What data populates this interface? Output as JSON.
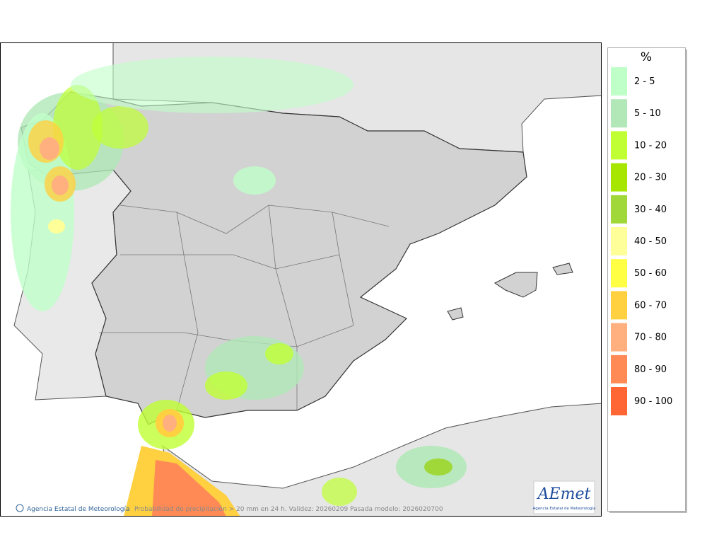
{
  "legend": {
    "title": "%",
    "items": [
      {
        "label": "2 - 5",
        "color": "#bfffc8"
      },
      {
        "label": "5 - 10",
        "color": "#b2e8b8"
      },
      {
        "label": "10 - 20",
        "color": "#bfff33"
      },
      {
        "label": "20 - 30",
        "color": "#a6e600"
      },
      {
        "label": "30 - 40",
        "color": "#a0d83a"
      },
      {
        "label": "40 - 50",
        "color": "#ffff99"
      },
      {
        "label": "50 - 60",
        "color": "#ffff44"
      },
      {
        "label": "60 - 70",
        "color": "#ffd040"
      },
      {
        "label": "70 - 80",
        "color": "#ffb07e"
      },
      {
        "label": "80 - 90",
        "color": "#ff8a55"
      },
      {
        "label": "90 - 100",
        "color": "#ff6633"
      }
    ]
  },
  "footer": {
    "credit": "Agencia Estatal de Meteorología",
    "caption": "Probabilidad de precipitación > 20 mm en 24 h. Validez: 20260209 Pasada modelo: 2026020700"
  },
  "logo": {
    "name": "AEmet",
    "subtitle": "Agencia Estatal de Meteorología"
  }
}
